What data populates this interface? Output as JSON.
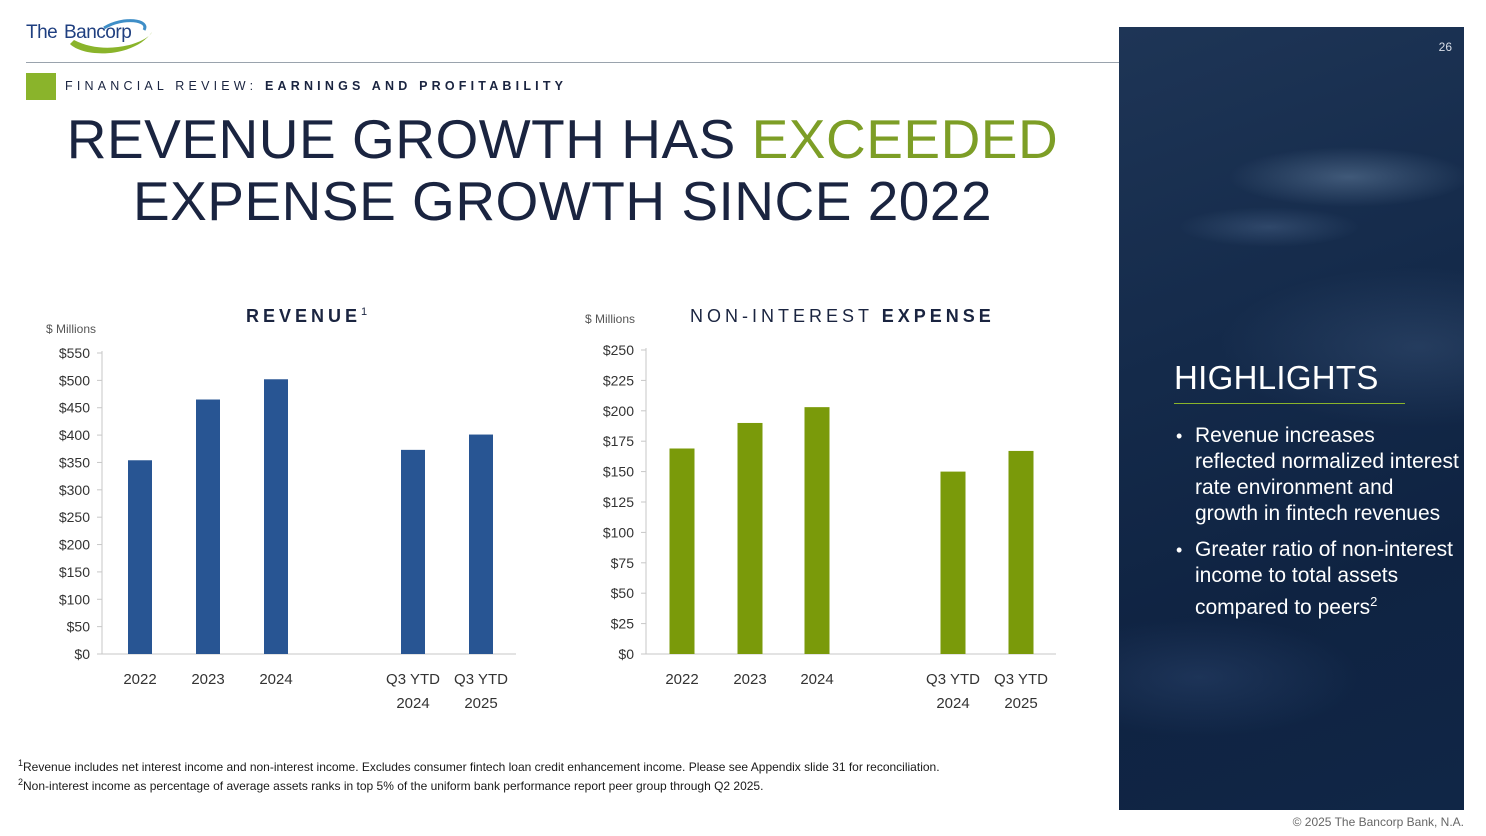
{
  "logo": {
    "the": "The",
    "name": "Bancorp"
  },
  "section": {
    "prefix": "FINANCIAL REVIEW:",
    "topic": "EARNINGS AND PROFITABILITY"
  },
  "title": {
    "part1": "REVENUE GROWTH HAS",
    "highlight": "EXCEEDED",
    "line2": "EXPENSE GROWTH SINCE 2022"
  },
  "page_number": "26",
  "highlights": {
    "title": "HIGHLIGHTS",
    "bullet1": "Revenue increases reflected normalized interest rate environment and growth in fintech revenues",
    "bullet2": "Greater ratio of non-interest income to total assets compared to peers",
    "bullet2_sup": "2"
  },
  "footnotes": {
    "note1_sup": "1",
    "note1": "Revenue includes net interest income and non-interest income. Excludes consumer fintech loan credit enhancement income. Please see Appendix slide 31 for reconciliation.",
    "note2_sup": "2",
    "note2": "Non-interest income as percentage of average assets ranks in top 5% of the uniform bank performance report peer group through Q2 2025."
  },
  "copyright": "© 2025 The Bancorp Bank, N.A.",
  "colors": {
    "revenue_bar": "#285593",
    "expense_bar": "#7a9a0a",
    "accent": "#8ab42b",
    "navy": "#1a2440"
  },
  "chart_data": [
    {
      "type": "bar",
      "title": "REVENUE",
      "title_sup": "1",
      "ylabel": "$ Millions",
      "categories": [
        "2022",
        "2023",
        "2024",
        "Q3 YTD 2024",
        "Q3 YTD 2025"
      ],
      "category_lines": [
        [
          "2022"
        ],
        [
          "2023"
        ],
        [
          "2024"
        ],
        [
          "Q3 YTD",
          "2024"
        ],
        [
          "Q3 YTD",
          "2025"
        ]
      ],
      "values": [
        354,
        465,
        502,
        373,
        401
      ],
      "ylim": [
        0,
        550
      ],
      "yticks": [
        0,
        50,
        100,
        150,
        200,
        250,
        300,
        350,
        400,
        450,
        500,
        550
      ],
      "ytick_labels": [
        "$0",
        "$50",
        "$100",
        "$150",
        "$200",
        "$250",
        "$300",
        "$350",
        "$400",
        "$450",
        "$500",
        "$550"
      ],
      "grid": false
    },
    {
      "type": "bar",
      "title_light": "NON-INTEREST",
      "title_bold": "EXPENSE",
      "ylabel": "$ Millions",
      "categories": [
        "2022",
        "2023",
        "2024",
        "Q3 YTD 2024",
        "Q3 YTD 2025"
      ],
      "category_lines": [
        [
          "2022"
        ],
        [
          "2023"
        ],
        [
          "2024"
        ],
        [
          "Q3 YTD",
          "2024"
        ],
        [
          "Q3 YTD",
          "2025"
        ]
      ],
      "values": [
        169,
        190,
        203,
        150,
        167
      ],
      "ylim": [
        0,
        250
      ],
      "yticks": [
        0,
        25,
        50,
        75,
        100,
        125,
        150,
        175,
        200,
        225,
        250
      ],
      "ytick_labels": [
        "$0",
        "$25",
        "$50",
        "$75",
        "$100",
        "$125",
        "$150",
        "$175",
        "$200",
        "$225",
        "$250"
      ],
      "grid": false
    }
  ]
}
